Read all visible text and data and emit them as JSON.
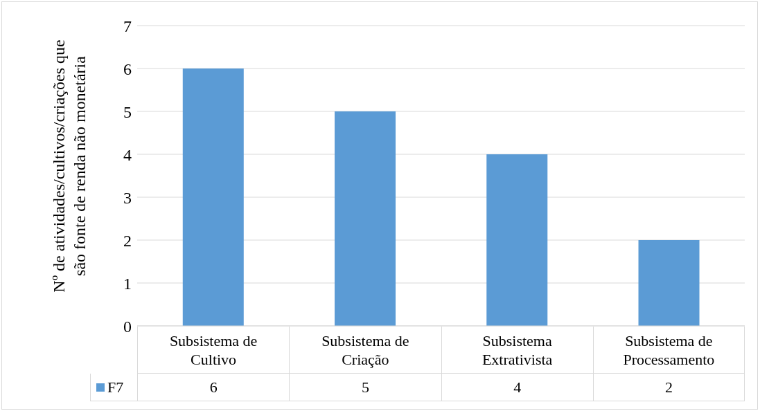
{
  "chart_data": {
    "type": "bar",
    "ylabel": "Nº de atividades/cultivos/criações que são fonte de renda não monetária",
    "categories": [
      "Subsistema de Cultivo",
      "Subsistema de Criação",
      "Subsistema Extrativista",
      "Subsistema de Processamento"
    ],
    "series": [
      {
        "name": "F7",
        "color": "#5b9bd5",
        "values": [
          6,
          5,
          4,
          2
        ]
      }
    ],
    "ylim": [
      0,
      7
    ],
    "yticks": [
      0,
      1,
      2,
      3,
      4,
      5,
      6,
      7
    ],
    "grid": "y",
    "legend": "bottom",
    "data_labels": true
  }
}
